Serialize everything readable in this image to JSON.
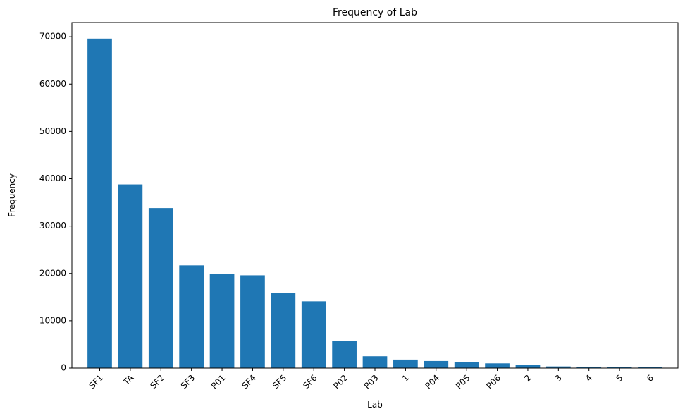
{
  "chart_data": {
    "type": "bar",
    "title": "Frequency of Lab",
    "xlabel": "Lab",
    "ylabel": "Frequency",
    "categories": [
      "SF1",
      "TA",
      "SF2",
      "SF3",
      "P01",
      "SF4",
      "SF5",
      "SF6",
      "P02",
      "P03",
      "1",
      "P04",
      "P05",
      "P06",
      "2",
      "3",
      "4",
      "5",
      "6"
    ],
    "values": [
      69600,
      38800,
      33800,
      21700,
      19900,
      19600,
      15900,
      14100,
      5700,
      2500,
      1800,
      1500,
      1200,
      1000,
      600,
      350,
      300,
      200,
      150
    ],
    "ylim": [
      0,
      73000
    ],
    "yticks": [
      0,
      10000,
      20000,
      30000,
      40000,
      50000,
      60000,
      70000
    ],
    "grid": false,
    "bar_color": "#1f77b4"
  }
}
